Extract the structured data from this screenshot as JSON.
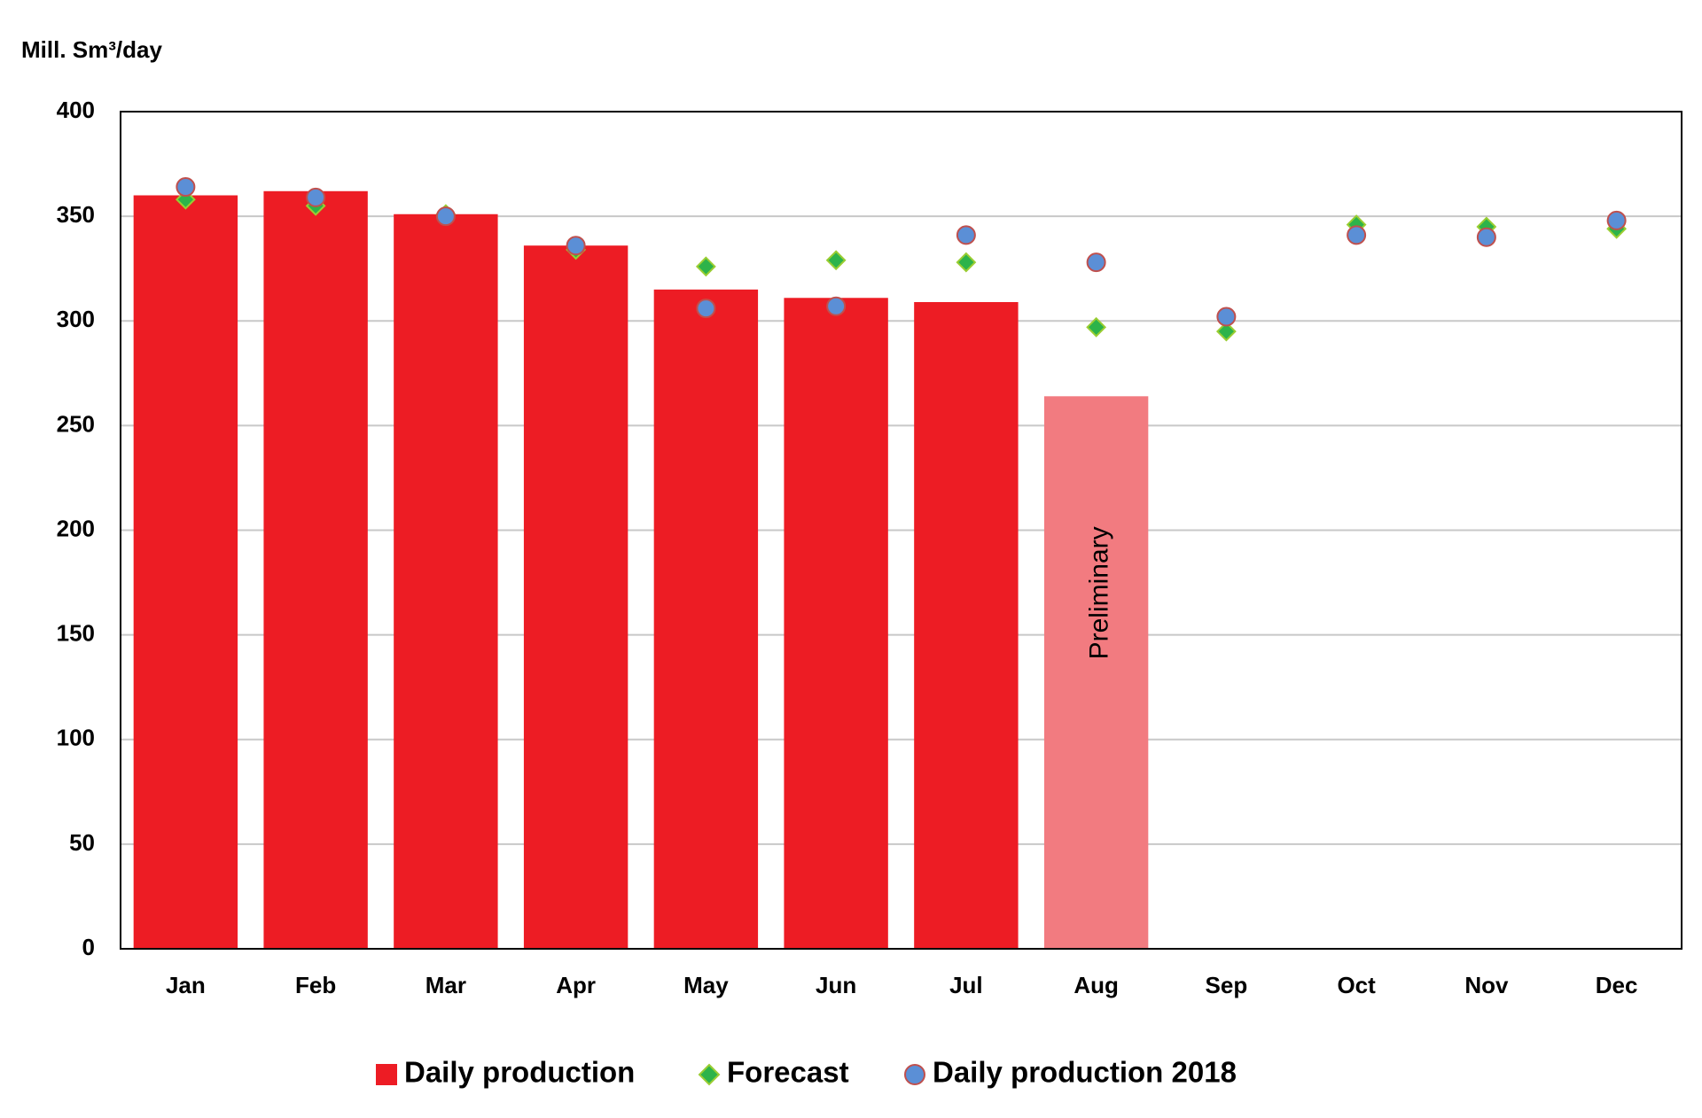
{
  "chart_data": {
    "type": "bar",
    "y_label": "Mill. Sm³/day",
    "categories": [
      "Jan",
      "Feb",
      "Mar",
      "Apr",
      "May",
      "Jun",
      "Jul",
      "Aug",
      "Sep",
      "Oct",
      "Nov",
      "Dec"
    ],
    "series": [
      {
        "name": "Daily production",
        "marker": "bar",
        "color": "#ed1c24",
        "values": [
          360,
          362,
          351,
          336,
          315,
          311,
          309,
          264,
          null,
          null,
          null,
          null
        ]
      },
      {
        "name": "Forecast",
        "marker": "diamond",
        "color": "#2db34a",
        "values": [
          358,
          355,
          351,
          334,
          326,
          329,
          328,
          297,
          295,
          346,
          345,
          344
        ]
      },
      {
        "name": "Daily production 2018",
        "marker": "circle",
        "color": "#5b8fd6",
        "values": [
          364,
          359,
          350,
          336,
          306,
          307,
          341,
          328,
          302,
          341,
          340,
          348
        ]
      }
    ],
    "annotations": [
      {
        "text": "Preliminary",
        "category": "Aug",
        "color": "#f27b80"
      }
    ],
    "ylim": [
      0,
      400
    ],
    "yticks": [
      0,
      50,
      100,
      150,
      200,
      250,
      300,
      350,
      400
    ],
    "grid": true,
    "legend": "bottom"
  }
}
